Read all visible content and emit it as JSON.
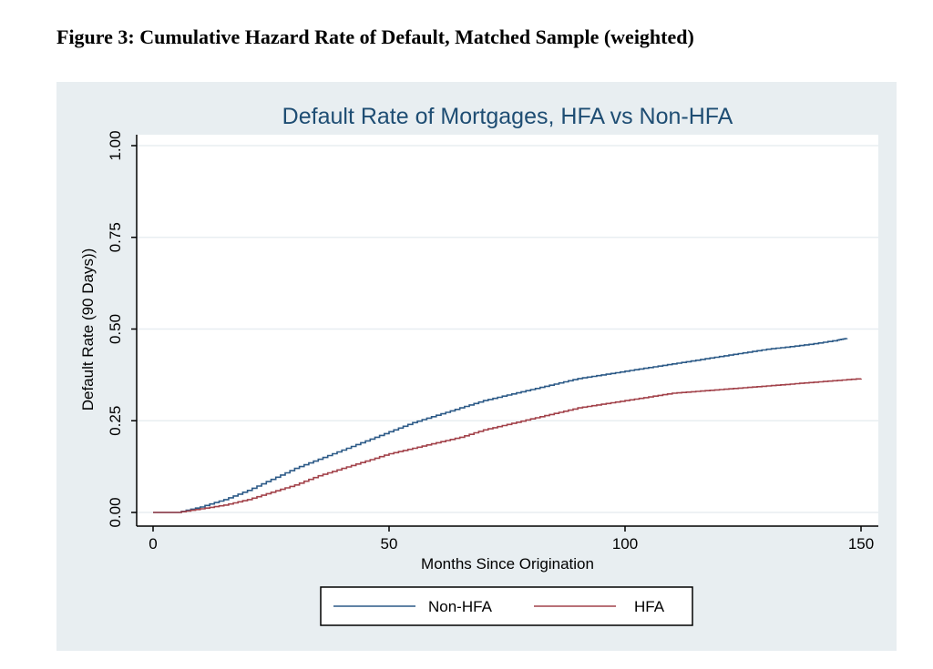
{
  "figure_caption": "Figure 3: Cumulative Hazard Rate of Default, Matched Sample (weighted)",
  "colors": {
    "panel_background": "#e8eef1",
    "plot_background": "#ffffff",
    "grid": "#e8eef1",
    "non_hfa": "#2c5a87",
    "hfa": "#a2424a",
    "title": "#1e4d73"
  },
  "chart_data": {
    "type": "line",
    "title": "Default Rate of Mortgages, HFA vs Non-HFA",
    "xlabel": "Months Since Origination",
    "ylabel": "Default Rate (90 Days))",
    "xlim": [
      0,
      150
    ],
    "ylim": [
      0,
      1
    ],
    "x_ticks": [
      "0",
      "50",
      "100",
      "150"
    ],
    "y_ticks": [
      "0.00",
      "0.25",
      "0.50",
      "0.75",
      "1.00"
    ],
    "grid": true,
    "legend_position": "bottom",
    "series": [
      {
        "name": "Non-HFA",
        "x": [
          0,
          5,
          10,
          15,
          20,
          25,
          30,
          35,
          40,
          45,
          50,
          55,
          60,
          65,
          70,
          75,
          80,
          85,
          90,
          95,
          100,
          105,
          110,
          115,
          120,
          125,
          130,
          135,
          140,
          145,
          147
        ],
        "y": [
          0.0,
          0.0,
          0.015,
          0.035,
          0.06,
          0.09,
          0.12,
          0.145,
          0.17,
          0.195,
          0.22,
          0.245,
          0.265,
          0.285,
          0.305,
          0.32,
          0.335,
          0.35,
          0.365,
          0.375,
          0.385,
          0.395,
          0.405,
          0.415,
          0.425,
          0.435,
          0.445,
          0.452,
          0.46,
          0.47,
          0.475
        ]
      },
      {
        "name": "HFA",
        "x": [
          0,
          5,
          10,
          15,
          20,
          25,
          30,
          35,
          40,
          45,
          50,
          55,
          60,
          65,
          70,
          75,
          80,
          85,
          90,
          95,
          100,
          105,
          110,
          115,
          120,
          125,
          130,
          135,
          140,
          145,
          150
        ],
        "y": [
          0.0,
          0.0,
          0.01,
          0.02,
          0.035,
          0.055,
          0.075,
          0.1,
          0.12,
          0.14,
          0.16,
          0.175,
          0.19,
          0.205,
          0.225,
          0.24,
          0.255,
          0.27,
          0.285,
          0.295,
          0.305,
          0.315,
          0.325,
          0.33,
          0.335,
          0.34,
          0.345,
          0.35,
          0.355,
          0.36,
          0.365
        ]
      }
    ]
  }
}
